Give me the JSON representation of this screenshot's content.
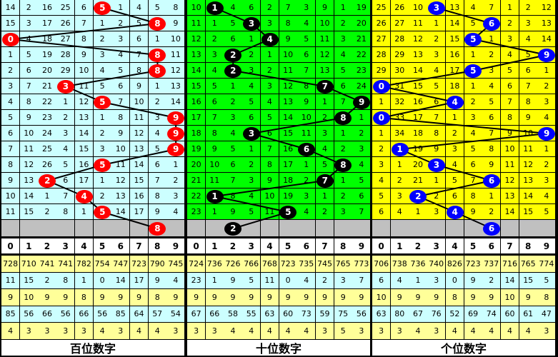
{
  "digit_header": [
    "0",
    "1",
    "2",
    "3",
    "4",
    "5",
    "6",
    "7",
    "8",
    "9"
  ],
  "panels": [
    {
      "label": "百位数字",
      "colors": {
        "grid_bg": "#ccffff",
        "ball": "#ff0000"
      },
      "rows": [
        [
          14,
          2,
          16,
          25,
          6,
          5,
          1,
          4,
          5,
          8
        ],
        [
          15,
          3,
          17,
          26,
          7,
          1,
          2,
          5,
          8,
          9
        ],
        [
          0,
          4,
          18,
          27,
          8,
          2,
          3,
          6,
          1,
          10
        ],
        [
          1,
          5,
          19,
          28,
          9,
          3,
          4,
          7,
          8,
          11
        ],
        [
          2,
          6,
          20,
          29,
          10,
          4,
          5,
          8,
          8,
          12
        ],
        [
          3,
          7,
          21,
          3,
          11,
          5,
          6,
          9,
          1,
          13
        ],
        [
          4,
          8,
          22,
          1,
          12,
          5,
          7,
          10,
          2,
          14
        ],
        [
          5,
          9,
          23,
          2,
          13,
          1,
          8,
          11,
          3,
          9
        ],
        [
          6,
          10,
          24,
          3,
          14,
          2,
          9,
          12,
          4,
          9
        ],
        [
          7,
          11,
          25,
          4,
          15,
          3,
          10,
          13,
          5,
          9
        ],
        [
          8,
          12,
          26,
          5,
          16,
          5,
          11,
          14,
          6,
          1
        ],
        [
          9,
          13,
          2,
          6,
          17,
          1,
          12,
          15,
          7,
          2
        ],
        [
          10,
          14,
          1,
          7,
          4,
          2,
          13,
          16,
          8,
          3
        ],
        [
          11,
          15,
          2,
          8,
          1,
          5,
          14,
          17,
          9,
          4
        ]
      ],
      "draws": [
        5,
        8,
        0,
        8,
        8,
        3,
        5,
        9,
        9,
        9,
        5,
        2,
        4,
        5
      ],
      "prediction": 8,
      "stats": [
        [
          "728",
          "710",
          "741",
          "741",
          "782",
          "754",
          "747",
          "723",
          "790",
          "745"
        ],
        [
          "11",
          "15",
          "2",
          "8",
          "1",
          "0",
          "14",
          "17",
          "9",
          "4"
        ],
        [
          "9",
          "10",
          "9",
          "9",
          "8",
          "9",
          "9",
          "9",
          "8",
          "9"
        ],
        [
          "85",
          "56",
          "66",
          "56",
          "66",
          "56",
          "85",
          "64",
          "57",
          "54"
        ],
        [
          "4",
          "3",
          "3",
          "3",
          "3",
          "4",
          "3",
          "4",
          "4",
          "3"
        ]
      ]
    },
    {
      "label": "十位数字",
      "colors": {
        "grid_bg": "#00ff00",
        "ball": "#000000"
      },
      "rows": [
        [
          10,
          1,
          4,
          6,
          2,
          7,
          3,
          9,
          1,
          19
        ],
        [
          11,
          1,
          5,
          3,
          3,
          8,
          4,
          10,
          2,
          20
        ],
        [
          12,
          2,
          6,
          1,
          4,
          9,
          5,
          11,
          3,
          21
        ],
        [
          13,
          3,
          2,
          2,
          1,
          10,
          6,
          12,
          4,
          22
        ],
        [
          14,
          4,
          2,
          3,
          2,
          11,
          7,
          13,
          5,
          23
        ],
        [
          15,
          5,
          1,
          4,
          3,
          12,
          8,
          7,
          6,
          24
        ],
        [
          16,
          6,
          2,
          5,
          4,
          13,
          9,
          1,
          7,
          9
        ],
        [
          17,
          7,
          3,
          6,
          5,
          14,
          10,
          2,
          8,
          1
        ],
        [
          18,
          8,
          4,
          3,
          6,
          15,
          11,
          3,
          1,
          2
        ],
        [
          19,
          9,
          5,
          1,
          7,
          16,
          6,
          4,
          2,
          3
        ],
        [
          20,
          10,
          6,
          2,
          8,
          17,
          1,
          5,
          8,
          4
        ],
        [
          21,
          11,
          7,
          3,
          9,
          18,
          2,
          7,
          1,
          5
        ],
        [
          22,
          1,
          8,
          4,
          10,
          19,
          3,
          1,
          2,
          6
        ],
        [
          23,
          1,
          9,
          5,
          11,
          5,
          4,
          2,
          3,
          7
        ]
      ],
      "draws": [
        1,
        3,
        4,
        2,
        2,
        7,
        9,
        8,
        3,
        6,
        8,
        7,
        1,
        5
      ],
      "prediction": 2,
      "stats": [
        [
          "724",
          "736",
          "726",
          "766",
          "768",
          "723",
          "735",
          "745",
          "765",
          "773"
        ],
        [
          "23",
          "1",
          "9",
          "5",
          "11",
          "0",
          "4",
          "2",
          "3",
          "7"
        ],
        [
          "9",
          "9",
          "9",
          "9",
          "9",
          "9",
          "9",
          "9",
          "9",
          "9"
        ],
        [
          "67",
          "66",
          "58",
          "55",
          "63",
          "60",
          "73",
          "59",
          "75",
          "56"
        ],
        [
          "3",
          "3",
          "4",
          "4",
          "4",
          "4",
          "4",
          "3",
          "5",
          "3"
        ]
      ]
    },
    {
      "label": "个位数字",
      "colors": {
        "grid_bg": "#ffff00",
        "ball": "#0000ff"
      },
      "rows": [
        [
          25,
          26,
          10,
          3,
          13,
          4,
          7,
          1,
          2,
          12
        ],
        [
          26,
          27,
          11,
          1,
          14,
          5,
          6,
          2,
          3,
          13
        ],
        [
          27,
          28,
          12,
          2,
          15,
          5,
          1,
          3,
          4,
          14
        ],
        [
          28,
          29,
          13,
          3,
          16,
          1,
          2,
          4,
          5,
          9
        ],
        [
          29,
          30,
          14,
          4,
          17,
          5,
          3,
          5,
          6,
          1
        ],
        [
          0,
          31,
          15,
          5,
          18,
          1,
          4,
          6,
          7,
          2
        ],
        [
          1,
          32,
          16,
          6,
          4,
          2,
          5,
          7,
          8,
          3
        ],
        [
          0,
          33,
          17,
          7,
          1,
          3,
          6,
          8,
          9,
          4
        ],
        [
          1,
          34,
          18,
          8,
          2,
          4,
          7,
          9,
          10,
          9
        ],
        [
          2,
          1,
          19,
          9,
          3,
          5,
          8,
          10,
          11,
          1
        ],
        [
          3,
          1,
          20,
          3,
          4,
          6,
          9,
          11,
          12,
          2
        ],
        [
          4,
          2,
          21,
          1,
          5,
          7,
          6,
          12,
          13,
          3
        ],
        [
          5,
          3,
          2,
          2,
          6,
          8,
          1,
          13,
          14,
          4
        ],
        [
          6,
          4,
          1,
          3,
          4,
          9,
          2,
          14,
          15,
          5
        ]
      ],
      "draws": [
        3,
        6,
        5,
        9,
        5,
        0,
        4,
        0,
        9,
        1,
        3,
        6,
        2,
        4
      ],
      "prediction": 6,
      "stats": [
        [
          "706",
          "738",
          "736",
          "740",
          "826",
          "723",
          "737",
          "716",
          "765",
          "774"
        ],
        [
          "6",
          "4",
          "1",
          "3",
          "0",
          "9",
          "2",
          "14",
          "15",
          "5"
        ],
        [
          "10",
          "9",
          "9",
          "9",
          "8",
          "9",
          "9",
          "10",
          "9",
          "8"
        ],
        [
          "63",
          "80",
          "67",
          "76",
          "52",
          "69",
          "74",
          "60",
          "61",
          "47"
        ],
        [
          "3",
          "3",
          "4",
          "3",
          "4",
          "4",
          "4",
          "4",
          "4",
          "3"
        ]
      ]
    }
  ],
  "colors": {
    "stat_yellow": "#ffff99",
    "stat_cyan": "#ccffff",
    "prediction_row": "#c0c0c0"
  }
}
